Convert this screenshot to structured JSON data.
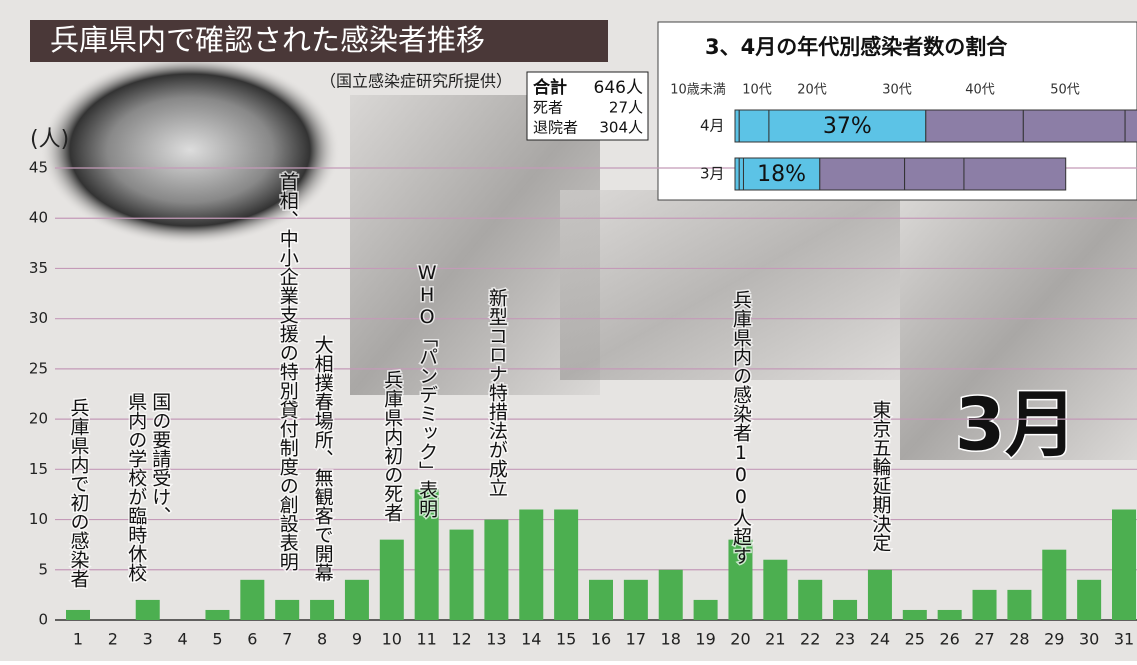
{
  "chart_data": [
    {
      "type": "bar",
      "title": "兵庫県内で確認された感染者推移",
      "subtitle": "（国立感染症研究所提供）",
      "y_label": "(人)",
      "categories": [
        "1",
        "2",
        "3",
        "4",
        "5",
        "6",
        "7",
        "8",
        "9",
        "10",
        "11",
        "12",
        "13",
        "14",
        "15",
        "16",
        "17",
        "18",
        "19",
        "20",
        "21",
        "22",
        "23",
        "24",
        "25",
        "26",
        "27",
        "28",
        "29",
        "30",
        "31"
      ],
      "values": [
        1,
        0,
        2,
        0,
        1,
        4,
        2,
        2,
        4,
        8,
        13,
        9,
        10,
        11,
        11,
        4,
        4,
        5,
        2,
        8,
        6,
        4,
        2,
        5,
        1,
        1,
        3,
        3,
        7,
        4,
        11
      ],
      "color": "#4caf50",
      "ylim": [
        0,
        45
      ],
      "yticks": [
        0,
        5,
        10,
        15,
        20,
        25,
        30,
        35,
        40,
        45
      ],
      "grid": true,
      "annotations": [
        {
          "at": "1",
          "lines": [
            "兵庫県内で初の感染者"
          ]
        },
        {
          "at": "3",
          "lines": [
            "国の要請受け、",
            "県内の学校が臨時休校"
          ]
        },
        {
          "at": "7",
          "lines": [
            "首相、中小企業支援の特別貸付制度の創設表明"
          ]
        },
        {
          "at": "8",
          "lines": [
            "大相撲春場所、無観客で開幕"
          ]
        },
        {
          "at": "10",
          "lines": [
            "兵庫県内初の死者"
          ]
        },
        {
          "at": "11",
          "lines": [
            "WHO「パンデミック」表明"
          ]
        },
        {
          "at": "13",
          "lines": [
            "新型コロナ特措法が成立"
          ]
        },
        {
          "at": "20",
          "lines": [
            "兵庫県内の感染者100人超す"
          ]
        },
        {
          "at": "24",
          "lines": [
            "東京五輪延期決定"
          ]
        }
      ],
      "big_label": "3月",
      "totals": [
        {
          "label": "合計",
          "value": "646人"
        },
        {
          "label": "死者",
          "value": "27人"
        },
        {
          "label": "退院者",
          "value": "304人"
        }
      ]
    },
    {
      "type": "stacked_barh",
      "title": "3、4月の年代別感染者数の割合",
      "categories": [
        "4月",
        "3月"
      ],
      "xlim": [
        0,
        100
      ],
      "series": [
        {
          "name": "10歳未満",
          "color": "#5cc3e6",
          "values": [
            1,
            1
          ]
        },
        {
          "name": "10代",
          "color": "#5cc3e6",
          "values": [
            7,
            1
          ]
        },
        {
          "name": "20代",
          "color": "#5cc3e6",
          "values": [
            37,
            18
          ],
          "value_labels": [
            "37%",
            "18%"
          ]
        },
        {
          "name": "30代",
          "color": "#8c7ea6",
          "values": [
            23,
            20
          ]
        },
        {
          "name": "40代",
          "color": "#8c7ea6",
          "values": [
            24,
            14
          ]
        },
        {
          "name": "50代",
          "color": "#8c7ea6",
          "values": [
            8,
            24
          ]
        }
      ]
    }
  ]
}
